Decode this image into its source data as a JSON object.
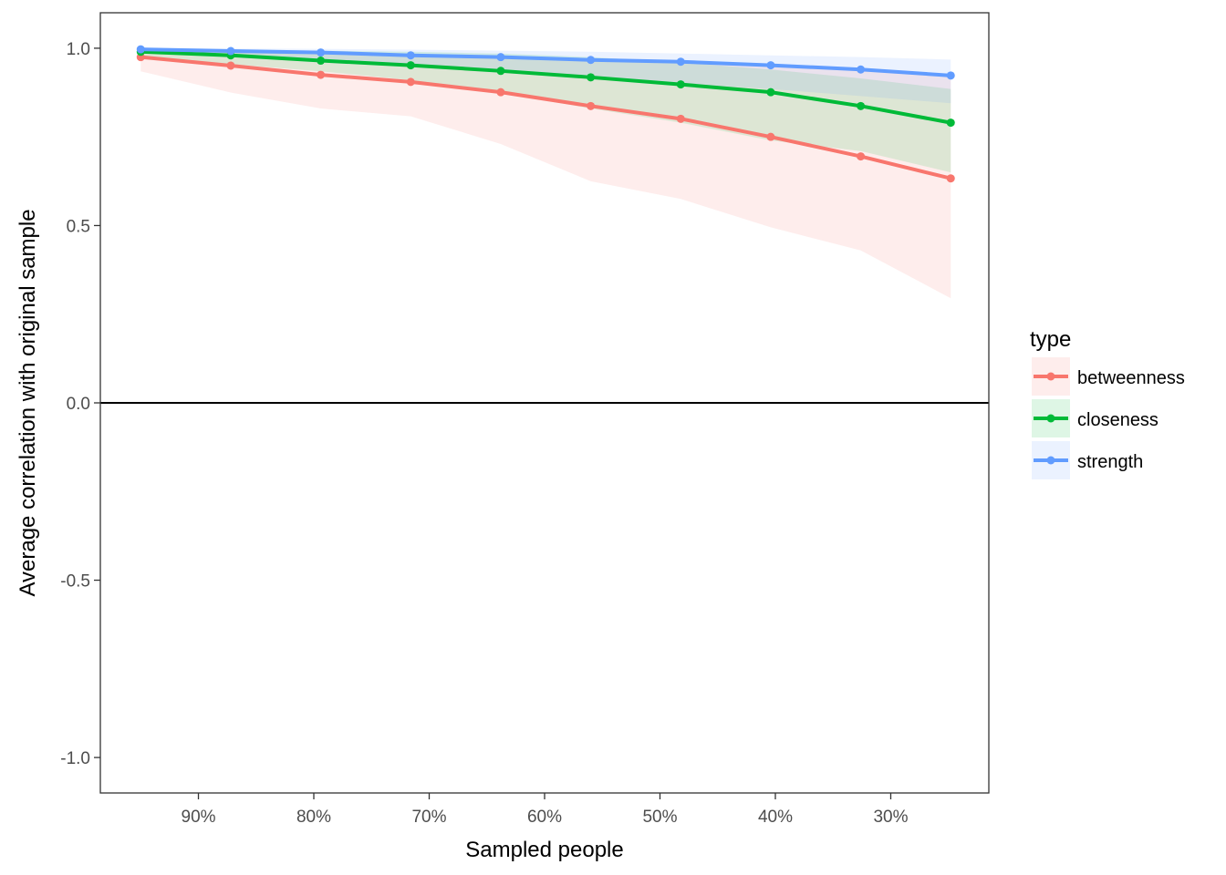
{
  "chart_data": {
    "type": "line",
    "xlabel": "Sampled people",
    "ylabel": "Average correlation with original sample",
    "x_reversed": true,
    "xlim": [
      0.985,
      0.215
    ],
    "ylim": [
      -1.1,
      1.1
    ],
    "x_ticks": [
      {
        "value": 0.9,
        "label": "90%"
      },
      {
        "value": 0.8,
        "label": "80%"
      },
      {
        "value": 0.7,
        "label": "70%"
      },
      {
        "value": 0.6,
        "label": "60%"
      },
      {
        "value": 0.5,
        "label": "50%"
      },
      {
        "value": 0.4,
        "label": "40%"
      },
      {
        "value": 0.3,
        "label": "30%"
      }
    ],
    "y_ticks": [
      {
        "value": 1.0,
        "label": "1.0"
      },
      {
        "value": 0.5,
        "label": "0.5"
      },
      {
        "value": 0.0,
        "label": "0.0"
      },
      {
        "value": -0.5,
        "label": "-0.5"
      },
      {
        "value": -1.0,
        "label": "-1.0"
      }
    ],
    "hline": 0,
    "grid": false,
    "legend": {
      "title": "type",
      "position": "right"
    },
    "x": [
      0.95,
      0.872,
      0.794,
      0.716,
      0.638,
      0.56,
      0.482,
      0.404,
      0.326,
      0.248
    ],
    "series": [
      {
        "name": "betweenness",
        "color": "#F8766D",
        "values": [
          0.975,
          0.951,
          0.925,
          0.905,
          0.876,
          0.837,
          0.801,
          0.75,
          0.695,
          0.633
        ],
        "lower": [
          0.935,
          0.875,
          0.83,
          0.808,
          0.73,
          0.625,
          0.575,
          0.495,
          0.43,
          0.295
        ],
        "upper": [
          0.995,
          0.99,
          0.985,
          0.98,
          0.975,
          0.968,
          0.96,
          0.95,
          0.94,
          0.92
        ]
      },
      {
        "name": "closeness",
        "color": "#00BA38",
        "values": [
          0.99,
          0.98,
          0.965,
          0.952,
          0.936,
          0.918,
          0.898,
          0.876,
          0.837,
          0.79
        ],
        "lower": [
          0.975,
          0.955,
          0.935,
          0.91,
          0.875,
          0.83,
          0.79,
          0.74,
          0.71,
          0.65
        ],
        "upper": [
          0.998,
          0.996,
          0.993,
          0.99,
          0.985,
          0.975,
          0.96,
          0.94,
          0.915,
          0.885
        ]
      },
      {
        "name": "strength",
        "color": "#619CFF",
        "values": [
          0.997,
          0.992,
          0.988,
          0.98,
          0.975,
          0.967,
          0.962,
          0.952,
          0.94,
          0.923
        ],
        "lower": [
          0.99,
          0.982,
          0.97,
          0.955,
          0.94,
          0.92,
          0.9,
          0.885,
          0.865,
          0.845
        ],
        "upper": [
          1.0,
          0.999,
          0.998,
          0.996,
          0.993,
          0.99,
          0.985,
          0.98,
          0.975,
          0.968
        ]
      }
    ]
  }
}
